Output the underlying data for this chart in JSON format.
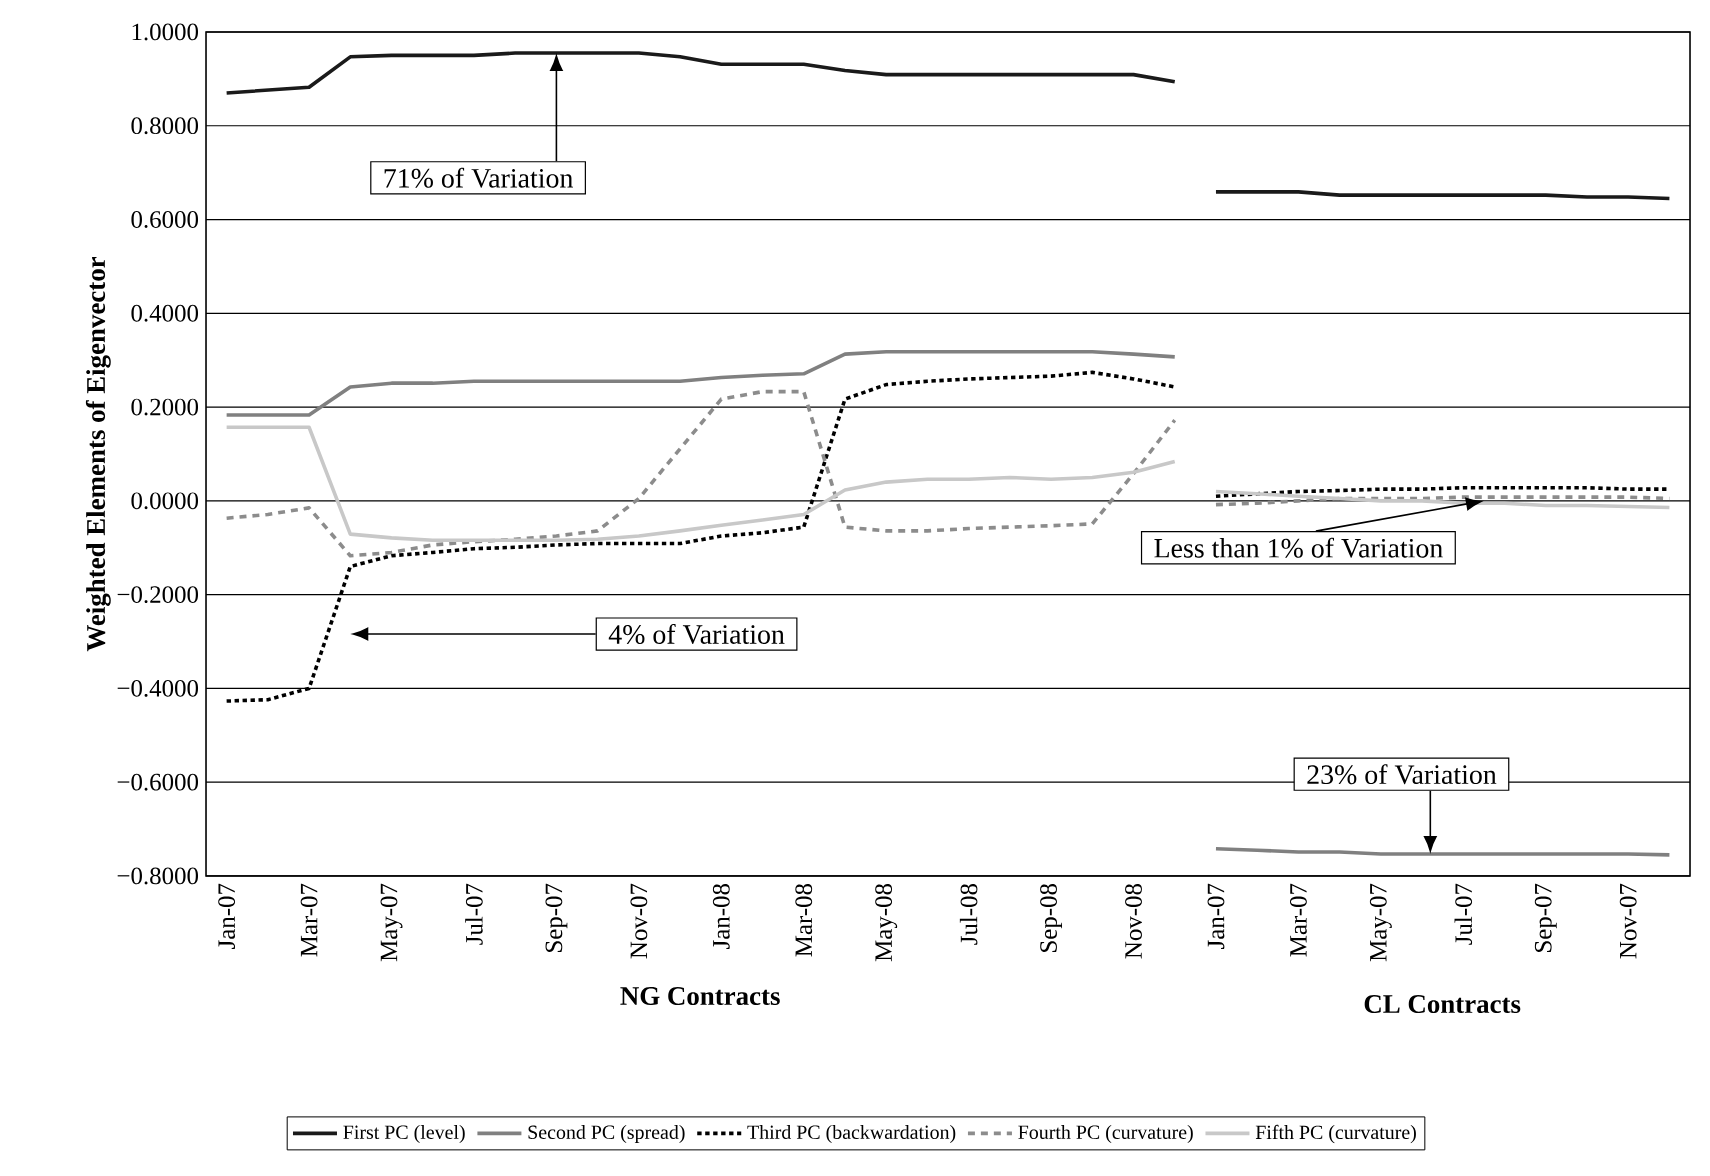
{
  "chart_data": {
    "type": "line",
    "xlabel": "NG Contracts",
    "ylabel": "Weighted Elements of Eigenvector",
    "categories": [
      "Jan-07",
      null,
      "Mar-07",
      null,
      "May-07",
      null,
      "Jul-07",
      null,
      "Sep-07",
      null,
      "Nov-07",
      null,
      "Jan-08",
      null,
      "Mar-08",
      null,
      "May-08",
      null,
      "Jul-08",
      null,
      "Sep-08",
      null,
      "Nov-08",
      null,
      "Jan-07",
      null,
      "Mar-07",
      null,
      "May-07",
      null,
      "Jul-07",
      null,
      "Sep-07",
      null,
      "Nov-07",
      null
    ],
    "series": [
      {
        "name": "First PC (level)",
        "color": "#1a1a1a",
        "line_style": "solid",
        "values": [
          0.87,
          0.876,
          0.882,
          0.947,
          0.95,
          0.95,
          0.95,
          0.955,
          0.955,
          0.955,
          0.955,
          0.947,
          0.931,
          0.931,
          0.931,
          0.918,
          0.909,
          0.909,
          0.909,
          0.909,
          0.909,
          0.909,
          0.909,
          0.894,
          null,
          null,
          null,
          null,
          null,
          null,
          null,
          null,
          null,
          null,
          null,
          null
        ]
      },
      {
        "name": "Second PC (spread)",
        "color": "#808080",
        "line_style": "solid",
        "values": [
          0.183,
          0.183,
          0.183,
          0.243,
          0.251,
          0.251,
          0.255,
          0.255,
          0.255,
          0.255,
          0.255,
          0.255,
          0.263,
          0.268,
          0.271,
          0.313,
          0.318,
          0.318,
          0.318,
          0.318,
          0.318,
          0.318,
          0.313,
          0.307,
          null,
          null,
          null,
          null,
          null,
          null,
          null,
          null,
          null,
          null,
          null,
          null
        ]
      },
      {
        "name": "Third PC (backwardation)",
        "color": "#000000",
        "line_style": "dotted",
        "values": [
          -0.427,
          -0.424,
          -0.4,
          -0.14,
          -0.117,
          -0.11,
          -0.102,
          -0.099,
          -0.094,
          -0.091,
          -0.091,
          -0.091,
          -0.075,
          -0.068,
          -0.056,
          0.217,
          0.248,
          0.255,
          0.26,
          0.263,
          0.266,
          0.274,
          0.26,
          0.243,
          null,
          null,
          null,
          null,
          null,
          null,
          null,
          null,
          null,
          null,
          null,
          null
        ]
      },
      {
        "name": "Fourth PC (curvature)",
        "color": "#8c8c8c",
        "line_style": "dashed",
        "values": [
          -0.037,
          -0.029,
          -0.015,
          -0.117,
          -0.11,
          -0.094,
          -0.087,
          -0.082,
          -0.075,
          -0.064,
          0.005,
          0.111,
          0.217,
          0.233,
          0.233,
          -0.056,
          -0.064,
          -0.064,
          -0.059,
          -0.056,
          -0.053,
          -0.049,
          0.058,
          0.172,
          null,
          null,
          null,
          null,
          null,
          null,
          null,
          null,
          null,
          null,
          null,
          null
        ]
      },
      {
        "name": "Fifth PC (curvature)",
        "color": "#c8c8c8",
        "line_style": "solid",
        "values": [
          0.157,
          0.157,
          0.157,
          -0.071,
          -0.079,
          -0.084,
          -0.084,
          -0.084,
          -0.084,
          -0.082,
          -0.075,
          -0.064,
          -0.052,
          -0.041,
          -0.029,
          0.023,
          0.04,
          0.046,
          0.046,
          0.05,
          0.046,
          0.05,
          0.061,
          0.084,
          null,
          null,
          null,
          null,
          null,
          null,
          null,
          null,
          null,
          null,
          null,
          null
        ]
      },
      {
        "color": "#1a1a1a",
        "line_style": "solid",
        "values": [
          null,
          null,
          null,
          null,
          null,
          null,
          null,
          null,
          null,
          null,
          null,
          null,
          null,
          null,
          null,
          null,
          null,
          null,
          null,
          null,
          null,
          null,
          null,
          null,
          0.659,
          0.659,
          0.659,
          0.652,
          0.652,
          0.652,
          0.652,
          0.652,
          0.652,
          0.648,
          0.648,
          0.645
        ]
      },
      {
        "color": "#808080",
        "line_style": "solid",
        "values": [
          null,
          null,
          null,
          null,
          null,
          null,
          null,
          null,
          null,
          null,
          null,
          null,
          null,
          null,
          null,
          null,
          null,
          null,
          null,
          null,
          null,
          null,
          null,
          null,
          -0.742,
          -0.745,
          -0.749,
          -0.749,
          -0.753,
          -0.753,
          -0.753,
          -0.753,
          -0.753,
          -0.753,
          -0.753,
          -0.755
        ]
      },
      {
        "color": "#000000",
        "line_style": "dotted",
        "values": [
          null,
          null,
          null,
          null,
          null,
          null,
          null,
          null,
          null,
          null,
          null,
          null,
          null,
          null,
          null,
          null,
          null,
          null,
          null,
          null,
          null,
          null,
          null,
          null,
          0.01,
          0.015,
          0.02,
          0.022,
          0.025,
          0.025,
          0.028,
          0.028,
          0.028,
          0.028,
          0.025,
          0.025
        ]
      },
      {
        "color": "#8c8c8c",
        "line_style": "dashed",
        "values": [
          null,
          null,
          null,
          null,
          null,
          null,
          null,
          null,
          null,
          null,
          null,
          null,
          null,
          null,
          null,
          null,
          null,
          null,
          null,
          null,
          null,
          null,
          null,
          null,
          -0.008,
          -0.005,
          0.0,
          0.005,
          0.005,
          0.005,
          0.008,
          0.008,
          0.008,
          0.008,
          0.008,
          0.005
        ]
      },
      {
        "color": "#c8c8c8",
        "line_style": "solid",
        "values": [
          null,
          null,
          null,
          null,
          null,
          null,
          null,
          null,
          null,
          null,
          null,
          null,
          null,
          null,
          null,
          null,
          null,
          null,
          null,
          null,
          null,
          null,
          null,
          null,
          0.02,
          0.015,
          0.01,
          0.005,
          0.0,
          0.0,
          -0.005,
          -0.005,
          -0.01,
          -0.01,
          -0.012,
          -0.014
        ]
      }
    ],
    "ylim": [
      -0.8,
      1.0
    ],
    "yticks": [
      {
        "value": -0.8,
        "label": "−0.8000"
      },
      {
        "value": -0.6,
        "label": "−0.6000"
      },
      {
        "value": -0.4,
        "label": "−0.4000"
      },
      {
        "value": -0.2,
        "label": "−0.2000"
      },
      {
        "value": 0,
        "label": "0.0000"
      },
      {
        "value": 0.2,
        "label": "0.2000"
      },
      {
        "value": 0.4,
        "label": "0.4000"
      },
      {
        "value": 0.6,
        "label": "0.6000"
      },
      {
        "value": 0.8,
        "label": "0.8000"
      },
      {
        "value": 1.0,
        "label": "1.0000"
      }
    ],
    "grid": "y",
    "legend": "bottom",
    "annotations": [
      {
        "text": "71% of Variation",
        "x": "Sep-07",
        "y": 0.955
      },
      "4% of Variation",
      {
        "text": "Less than 1% of Variation",
        "y": 0.0
      },
      {
        "text": "23% of Variation",
        "y": -0.753
      },
      "CL Contracts"
    ]
  }
}
